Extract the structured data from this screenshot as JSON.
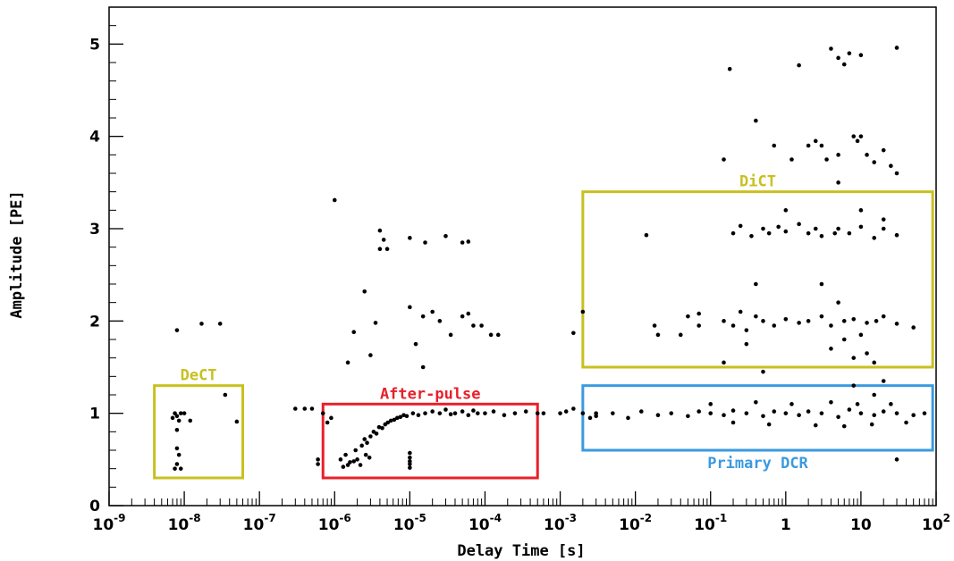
{
  "chart_data": {
    "type": "scatter",
    "title": "",
    "xlabel": "Delay Time [s]",
    "ylabel": "Amplitude [PE]",
    "xscale": "log",
    "xlim": [
      1e-09,
      100
    ],
    "ylim": [
      0,
      5.4
    ],
    "grid": false,
    "legend": "none",
    "x_ticks": [
      {
        "value": 1e-09,
        "base": "10",
        "exp": "-9"
      },
      {
        "value": 1e-08,
        "base": "10",
        "exp": "-8"
      },
      {
        "value": 1e-07,
        "base": "10",
        "exp": "-7"
      },
      {
        "value": 1e-06,
        "base": "10",
        "exp": "-6"
      },
      {
        "value": 1e-05,
        "base": "10",
        "exp": "-5"
      },
      {
        "value": 0.0001,
        "base": "10",
        "exp": "-4"
      },
      {
        "value": 0.001,
        "base": "10",
        "exp": "-3"
      },
      {
        "value": 0.01,
        "base": "10",
        "exp": "-2"
      },
      {
        "value": 0.1,
        "base": "10",
        "exp": "-1"
      },
      {
        "value": 1,
        "base": "1",
        "exp": ""
      },
      {
        "value": 10,
        "base": "10",
        "exp": ""
      },
      {
        "value": 100,
        "base": "10",
        "exp": "2"
      }
    ],
    "y_ticks": [
      {
        "value": 0,
        "label": "0"
      },
      {
        "value": 1,
        "label": "1"
      },
      {
        "value": 2,
        "label": "2"
      },
      {
        "value": 3,
        "label": "3"
      },
      {
        "value": 4,
        "label": "4"
      },
      {
        "value": 5,
        "label": "5"
      }
    ],
    "regions": [
      {
        "label": "DeCT",
        "x": [
          4e-09,
          6e-08
        ],
        "y": [
          0.3,
          1.3
        ],
        "color": "#c8c020"
      },
      {
        "label": "After-pulse",
        "x": [
          7e-07,
          0.0005
        ],
        "y": [
          0.3,
          1.1
        ],
        "color": "#e8202a"
      },
      {
        "label": "DiCT",
        "x": [
          0.002,
          90
        ],
        "y": [
          1.5,
          3.4
        ],
        "color": "#c8c020"
      },
      {
        "label": "Primary DCR",
        "x": [
          0.002,
          90
        ],
        "y": [
          0.6,
          1.3
        ],
        "color": "#3a9ae0"
      }
    ],
    "series": [
      {
        "color": "#000000",
        "points": [
          [
            8e-09,
            1.9
          ],
          [
            1.7e-08,
            1.97
          ],
          [
            3e-08,
            1.97
          ],
          [
            3.5e-08,
            1.2
          ],
          [
            5e-08,
            0.91
          ],
          [
            7e-09,
            0.95
          ],
          [
            7.5e-09,
            1.0
          ],
          [
            8e-09,
            0.97
          ],
          [
            9e-09,
            1.0
          ],
          [
            1e-08,
            1.0
          ],
          [
            1.2e-08,
            0.92
          ],
          [
            8.5e-09,
            0.92
          ],
          [
            8e-09,
            0.82
          ],
          [
            8e-09,
            0.62
          ],
          [
            8.5e-09,
            0.55
          ],
          [
            7.5e-09,
            0.4
          ],
          [
            9e-09,
            0.4
          ],
          [
            8e-09,
            0.45
          ],
          [
            1e-06,
            3.31
          ],
          [
            4e-06,
            2.98
          ],
          [
            4.5e-06,
            2.88
          ],
          [
            4e-06,
            2.78
          ],
          [
            5e-06,
            2.78
          ],
          [
            1e-05,
            2.9
          ],
          [
            1.6e-05,
            2.85
          ],
          [
            3e-05,
            2.92
          ],
          [
            5e-05,
            2.85
          ],
          [
            6e-05,
            2.86
          ],
          [
            2.5e-06,
            2.32
          ],
          [
            3.5e-06,
            1.98
          ],
          [
            1e-05,
            2.15
          ],
          [
            1.8e-06,
            1.88
          ],
          [
            1.5e-06,
            1.55
          ],
          [
            3e-06,
            1.63
          ],
          [
            1.5e-05,
            2.05
          ],
          [
            2e-05,
            2.1
          ],
          [
            2.5e-05,
            2.0
          ],
          [
            3.5e-05,
            1.85
          ],
          [
            5e-05,
            2.05
          ],
          [
            6e-05,
            2.08
          ],
          [
            7e-05,
            1.95
          ],
          [
            9e-05,
            1.95
          ],
          [
            0.00012,
            1.85
          ],
          [
            0.00015,
            1.85
          ],
          [
            1.2e-05,
            1.75
          ],
          [
            1.5e-05,
            1.5
          ],
          [
            3e-07,
            1.05
          ],
          [
            4e-07,
            1.05
          ],
          [
            5e-07,
            1.05
          ],
          [
            7e-07,
            1.0
          ],
          [
            8e-07,
            0.9
          ],
          [
            9e-07,
            0.95
          ],
          [
            0.002,
            2.1
          ],
          [
            0.0015,
            1.87
          ],
          [
            0.002,
            1.0
          ],
          [
            0.0005,
            1.0
          ],
          [
            0.0006,
            1.0
          ],
          [
            0.001,
            1.0
          ],
          [
            0.0012,
            1.02
          ],
          [
            0.0015,
            1.05
          ],
          [
            0.0025,
            0.95
          ],
          [
            0.003,
            1.0
          ],
          [
            1e-05,
            0.52
          ],
          [
            1e-05,
            0.45
          ],
          [
            1e-05,
            0.41
          ],
          [
            1e-05,
            0.57
          ],
          [
            1e-05,
            0.48
          ],
          [
            6e-07,
            0.5
          ],
          [
            6e-07,
            0.45
          ],
          [
            1.2e-06,
            0.5
          ],
          [
            1.4e-06,
            0.55
          ],
          [
            1.5e-06,
            0.44
          ],
          [
            1.8e-06,
            0.48
          ],
          [
            1.3e-06,
            0.42
          ],
          [
            1.6e-06,
            0.47
          ],
          [
            2e-06,
            0.5
          ],
          [
            2.2e-06,
            0.44
          ],
          [
            2.6e-06,
            0.55
          ],
          [
            2.9e-06,
            0.52
          ],
          [
            1.9e-06,
            0.6
          ],
          [
            2.3e-06,
            0.65
          ],
          [
            2.5e-06,
            0.72
          ],
          [
            2.7e-06,
            0.68
          ],
          [
            3e-06,
            0.75
          ],
          [
            3.3e-06,
            0.8
          ],
          [
            3.6e-06,
            0.78
          ],
          [
            3.9e-06,
            0.85
          ],
          [
            4.3e-06,
            0.84
          ],
          [
            4.7e-06,
            0.88
          ],
          [
            5.1e-06,
            0.9
          ],
          [
            5.6e-06,
            0.92
          ],
          [
            6.2e-06,
            0.93
          ],
          [
            6.8e-06,
            0.95
          ],
          [
            7.5e-06,
            0.96
          ],
          [
            8.3e-06,
            0.98
          ],
          [
            9.1e-06,
            0.97
          ],
          [
            1.1e-05,
            1.0
          ],
          [
            1.3e-05,
            0.98
          ],
          [
            1.6e-05,
            1.0
          ],
          [
            2e-05,
            1.02
          ],
          [
            2.5e-05,
            1.0
          ],
          [
            3e-05,
            1.04
          ],
          [
            3.5e-05,
            0.99
          ],
          [
            4e-05,
            1.0
          ],
          [
            5e-05,
            1.02
          ],
          [
            6e-05,
            0.98
          ],
          [
            7e-05,
            1.03
          ],
          [
            8e-05,
            1.0
          ],
          [
            0.0001,
            1.0
          ],
          [
            0.00013,
            1.02
          ],
          [
            0.00018,
            0.98
          ],
          [
            0.00025,
            1.0
          ],
          [
            0.00035,
            1.02
          ],
          [
            0.014,
            2.93
          ],
          [
            0.05,
            2.05
          ],
          [
            0.07,
            2.08
          ],
          [
            0.15,
            2.0
          ],
          [
            0.2,
            1.95
          ],
          [
            0.25,
            2.1
          ],
          [
            0.3,
            1.9
          ],
          [
            0.4,
            2.05
          ],
          [
            0.5,
            2.0
          ],
          [
            0.7,
            1.95
          ],
          [
            1.0,
            2.02
          ],
          [
            1.5,
            1.98
          ],
          [
            2.0,
            2.0
          ],
          [
            3.0,
            2.05
          ],
          [
            4.0,
            1.95
          ],
          [
            6.0,
            2.0
          ],
          [
            8.0,
            2.02
          ],
          [
            12.0,
            1.98
          ],
          [
            16.0,
            2.0
          ],
          [
            20.0,
            2.05
          ],
          [
            30.0,
            1.97
          ],
          [
            50.0,
            1.93
          ],
          [
            0.2,
            2.95
          ],
          [
            0.25,
            3.03
          ],
          [
            0.35,
            2.92
          ],
          [
            0.5,
            3.0
          ],
          [
            0.6,
            2.95
          ],
          [
            0.8,
            3.02
          ],
          [
            1.0,
            2.97
          ],
          [
            1.5,
            3.05
          ],
          [
            2.0,
            2.95
          ],
          [
            2.5,
            3.0
          ],
          [
            3.0,
            2.92
          ],
          [
            5.0,
            3.0
          ],
          [
            7.0,
            2.95
          ],
          [
            10.0,
            3.02
          ],
          [
            15.0,
            2.9
          ],
          [
            20.0,
            3.0
          ],
          [
            30.0,
            2.93
          ],
          [
            0.15,
            1.55
          ],
          [
            0.3,
            1.75
          ],
          [
            0.5,
            1.45
          ],
          [
            0.4,
            2.4
          ],
          [
            3.0,
            2.4
          ],
          [
            5.0,
            2.2
          ],
          [
            4.0,
            1.7
          ],
          [
            8.0,
            1.6
          ],
          [
            15.0,
            1.55
          ],
          [
            6.0,
            1.8
          ],
          [
            10.0,
            1.85
          ],
          [
            12.0,
            1.65
          ],
          [
            4.5,
            2.95
          ],
          [
            0.04,
            1.85
          ],
          [
            0.07,
            1.95
          ],
          [
            0.02,
            1.85
          ],
          [
            0.018,
            1.95
          ],
          [
            0.003,
            0.97
          ],
          [
            0.005,
            1.0
          ],
          [
            0.008,
            0.95
          ],
          [
            0.012,
            1.02
          ],
          [
            0.02,
            0.98
          ],
          [
            0.03,
            1.0
          ],
          [
            0.05,
            0.97
          ],
          [
            0.07,
            1.02
          ],
          [
            0.1,
            1.0
          ],
          [
            0.15,
            0.98
          ],
          [
            0.2,
            1.03
          ],
          [
            0.3,
            1.0
          ],
          [
            0.5,
            0.97
          ],
          [
            0.7,
            1.02
          ],
          [
            1.0,
            1.0
          ],
          [
            1.5,
            0.98
          ],
          [
            2.0,
            1.02
          ],
          [
            3.0,
            1.0
          ],
          [
            5.0,
            0.96
          ],
          [
            7.0,
            1.04
          ],
          [
            10.0,
            1.0
          ],
          [
            15.0,
            0.98
          ],
          [
            20.0,
            1.02
          ],
          [
            30.0,
            1.0
          ],
          [
            50.0,
            0.98
          ],
          [
            70.0,
            1.0
          ],
          [
            0.1,
            1.1
          ],
          [
            0.2,
            0.9
          ],
          [
            0.4,
            1.12
          ],
          [
            0.6,
            0.88
          ],
          [
            1.2,
            1.1
          ],
          [
            2.5,
            0.87
          ],
          [
            4.0,
            1.12
          ],
          [
            6.0,
            0.86
          ],
          [
            9.0,
            1.1
          ],
          [
            14.0,
            0.88
          ],
          [
            25.0,
            1.1
          ],
          [
            40.0,
            0.9
          ],
          [
            0.18,
            4.73
          ],
          [
            0.4,
            4.17
          ],
          [
            0.7,
            3.9
          ],
          [
            1.0,
            3.2
          ],
          [
            1.5,
            4.77
          ],
          [
            2.5,
            3.95
          ],
          [
            3.0,
            3.9
          ],
          [
            4.0,
            4.95
          ],
          [
            5.0,
            4.85
          ],
          [
            6.0,
            4.78
          ],
          [
            7.0,
            4.9
          ],
          [
            10.0,
            4.88
          ],
          [
            30.0,
            4.96
          ],
          [
            1.2,
            3.75
          ],
          [
            2.0,
            3.9
          ],
          [
            3.5,
            3.75
          ],
          [
            5.0,
            3.8
          ],
          [
            8.0,
            4.0
          ],
          [
            9.0,
            3.95
          ],
          [
            10.0,
            4.0
          ],
          [
            12.0,
            3.8
          ],
          [
            15.0,
            3.72
          ],
          [
            20.0,
            3.85
          ],
          [
            25.0,
            3.68
          ],
          [
            30.0,
            3.6
          ],
          [
            5.0,
            3.5
          ],
          [
            10.0,
            3.2
          ],
          [
            20.0,
            3.1
          ],
          [
            0.15,
            3.75
          ],
          [
            8.0,
            1.3
          ],
          [
            15.0,
            1.2
          ],
          [
            20.0,
            1.35
          ],
          [
            30.0,
            0.5
          ]
        ]
      }
    ]
  }
}
